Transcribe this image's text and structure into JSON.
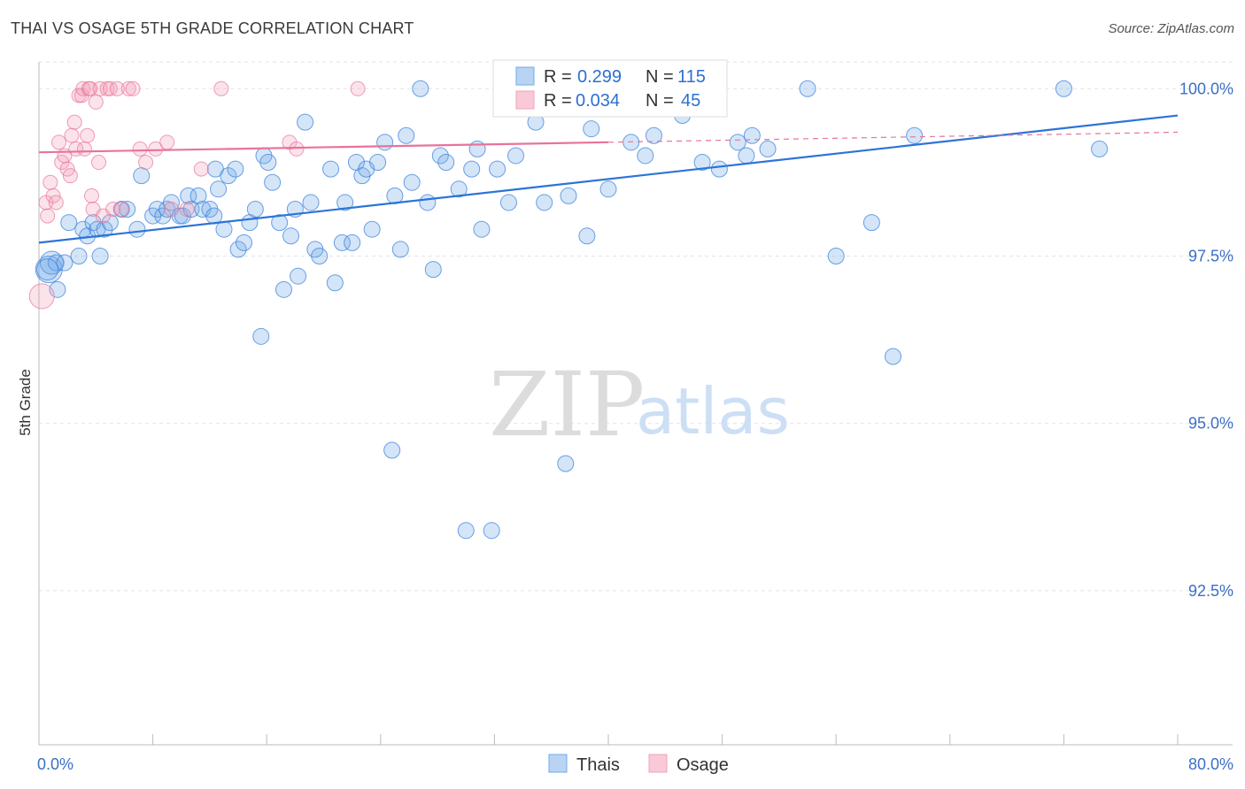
{
  "header": {
    "title": "THAI VS OSAGE 5TH GRADE CORRELATION CHART",
    "source": "Source: ZipAtlas.com"
  },
  "watermark": {
    "zip": "ZIP",
    "atlas": "atlas"
  },
  "colors": {
    "thai": "#6fa8e8",
    "thai_line": "#2d74d6",
    "osage": "#f2a3bb",
    "osage_line": "#e8739b",
    "tick_text": "#3b6fc6",
    "grid": "#e3e3e3"
  },
  "stats": [
    {
      "series": "Thais",
      "r_label": "R =",
      "r_value": "0.299",
      "n_label": "N =",
      "n_value": "115"
    },
    {
      "series": "Osage",
      "r_label": "R =",
      "r_value": "0.034",
      "n_label": "N =",
      "n_value": "45"
    }
  ],
  "chart_data": {
    "type": "scatter",
    "title": "THAI VS OSAGE 5TH GRADE CORRELATION CHART",
    "xlabel": "",
    "ylabel": "5th Grade",
    "xlim": [
      0,
      80
    ],
    "ylim": [
      90.2,
      100.4
    ],
    "x_tick_labels": [
      "0.0%",
      "80.0%"
    ],
    "y_ticks": [
      100.0,
      97.5,
      95.0,
      92.5
    ],
    "y_tick_labels": [
      "100.0%",
      "97.5%",
      "95.0%",
      "92.5%"
    ],
    "grid": true,
    "legend": "bottom-center",
    "series": [
      {
        "name": "Thais",
        "trend": {
          "x": [
            0,
            80
          ],
          "y": [
            97.7,
            99.6
          ]
        },
        "points": [
          [
            0.7,
            97.3
          ],
          [
            0.9,
            97.4
          ],
          [
            1.2,
            97.4
          ],
          [
            1.3,
            97.0
          ],
          [
            1.8,
            97.4
          ],
          [
            2.1,
            98.0
          ],
          [
            2.8,
            97.5
          ],
          [
            3.1,
            97.9
          ],
          [
            3.4,
            97.8
          ],
          [
            3.8,
            98.0
          ],
          [
            4.1,
            97.9
          ],
          [
            4.3,
            97.5
          ],
          [
            4.6,
            97.9
          ],
          [
            5.0,
            98.0
          ],
          [
            5.8,
            98.2
          ],
          [
            6.2,
            98.2
          ],
          [
            6.9,
            97.9
          ],
          [
            7.2,
            98.7
          ],
          [
            8.0,
            98.1
          ],
          [
            8.3,
            98.2
          ],
          [
            8.7,
            98.1
          ],
          [
            9.0,
            98.2
          ],
          [
            9.3,
            98.3
          ],
          [
            9.9,
            98.1
          ],
          [
            10.1,
            98.1
          ],
          [
            10.5,
            98.4
          ],
          [
            10.7,
            98.2
          ],
          [
            11.2,
            98.4
          ],
          [
            11.5,
            98.2
          ],
          [
            12.0,
            98.2
          ],
          [
            12.3,
            98.1
          ],
          [
            12.4,
            98.8
          ],
          [
            12.6,
            98.5
          ],
          [
            13.0,
            97.9
          ],
          [
            13.3,
            98.7
          ],
          [
            13.8,
            98.8
          ],
          [
            14.0,
            97.6
          ],
          [
            14.4,
            97.7
          ],
          [
            14.8,
            98.0
          ],
          [
            15.2,
            98.2
          ],
          [
            15.6,
            96.3
          ],
          [
            15.8,
            99.0
          ],
          [
            16.1,
            98.9
          ],
          [
            16.4,
            98.6
          ],
          [
            16.9,
            98.0
          ],
          [
            17.2,
            97.0
          ],
          [
            17.7,
            97.8
          ],
          [
            18.0,
            98.2
          ],
          [
            18.2,
            97.2
          ],
          [
            18.7,
            99.5
          ],
          [
            19.1,
            98.3
          ],
          [
            19.4,
            97.6
          ],
          [
            19.7,
            97.5
          ],
          [
            20.5,
            98.8
          ],
          [
            20.8,
            97.1
          ],
          [
            21.3,
            97.7
          ],
          [
            21.5,
            98.3
          ],
          [
            22.0,
            97.7
          ],
          [
            22.3,
            98.9
          ],
          [
            22.7,
            98.7
          ],
          [
            23.0,
            98.8
          ],
          [
            23.4,
            97.9
          ],
          [
            23.8,
            98.9
          ],
          [
            24.3,
            99.2
          ],
          [
            24.8,
            94.6
          ],
          [
            25.0,
            98.4
          ],
          [
            25.4,
            97.6
          ],
          [
            25.8,
            99.3
          ],
          [
            26.2,
            98.6
          ],
          [
            26.8,
            100.0
          ],
          [
            27.3,
            98.3
          ],
          [
            27.7,
            97.3
          ],
          [
            28.2,
            99.0
          ],
          [
            28.6,
            98.9
          ],
          [
            29.5,
            98.5
          ],
          [
            30.0,
            93.4
          ],
          [
            30.4,
            98.8
          ],
          [
            30.8,
            99.1
          ],
          [
            31.1,
            97.9
          ],
          [
            31.8,
            93.4
          ],
          [
            32.2,
            98.8
          ],
          [
            33.0,
            98.3
          ],
          [
            33.5,
            99.0
          ],
          [
            33.9,
            99.7
          ],
          [
            34.4,
            100.0
          ],
          [
            34.9,
            99.5
          ],
          [
            35.2,
            100.0
          ],
          [
            35.5,
            98.3
          ],
          [
            36.4,
            100.0
          ],
          [
            37.0,
            94.4
          ],
          [
            37.2,
            98.4
          ],
          [
            38.5,
            97.8
          ],
          [
            38.8,
            99.4
          ],
          [
            39.2,
            99.7
          ],
          [
            40.0,
            98.5
          ],
          [
            41.6,
            99.2
          ],
          [
            42.1,
            100.0
          ],
          [
            42.6,
            99.0
          ],
          [
            43.2,
            99.3
          ],
          [
            44.5,
            100.0
          ],
          [
            45.2,
            99.6
          ],
          [
            46.6,
            98.9
          ],
          [
            47.8,
            98.8
          ],
          [
            49.1,
            99.2
          ],
          [
            49.7,
            99.0
          ],
          [
            50.1,
            99.3
          ],
          [
            51.2,
            99.1
          ],
          [
            54.0,
            100.0
          ],
          [
            56.0,
            97.5
          ],
          [
            58.5,
            98.0
          ],
          [
            60.0,
            96.0
          ],
          [
            61.5,
            99.3
          ],
          [
            72.0,
            100.0
          ],
          [
            74.5,
            99.1
          ],
          [
            0.6,
            97.3
          ]
        ]
      },
      {
        "name": "Osage",
        "trend": {
          "x": [
            0,
            40
          ],
          "y": [
            99.05,
            99.2
          ]
        },
        "trend_extension": {
          "x": [
            40,
            80
          ],
          "y": [
            99.2,
            99.35
          ]
        },
        "points": [
          [
            0.2,
            96.9
          ],
          [
            0.5,
            98.3
          ],
          [
            0.6,
            98.1
          ],
          [
            0.8,
            98.6
          ],
          [
            1.0,
            98.4
          ],
          [
            1.2,
            98.3
          ],
          [
            1.4,
            99.2
          ],
          [
            1.6,
            98.9
          ],
          [
            1.8,
            99.0
          ],
          [
            2.0,
            98.8
          ],
          [
            2.2,
            98.7
          ],
          [
            2.3,
            99.3
          ],
          [
            2.5,
            99.5
          ],
          [
            2.6,
            99.1
          ],
          [
            2.8,
            99.9
          ],
          [
            3.0,
            99.9
          ],
          [
            3.1,
            100.0
          ],
          [
            3.2,
            99.1
          ],
          [
            3.4,
            99.3
          ],
          [
            3.5,
            100.0
          ],
          [
            3.6,
            100.0
          ],
          [
            3.7,
            98.4
          ],
          [
            3.8,
            98.2
          ],
          [
            4.0,
            99.8
          ],
          [
            4.2,
            98.9
          ],
          [
            4.3,
            100.0
          ],
          [
            4.5,
            98.1
          ],
          [
            4.8,
            100.0
          ],
          [
            5.0,
            100.0
          ],
          [
            5.2,
            98.2
          ],
          [
            5.5,
            100.0
          ],
          [
            5.8,
            98.2
          ],
          [
            6.3,
            100.0
          ],
          [
            6.6,
            100.0
          ],
          [
            7.1,
            99.1
          ],
          [
            7.5,
            98.9
          ],
          [
            8.2,
            99.1
          ],
          [
            9.0,
            99.2
          ],
          [
            9.3,
            98.2
          ],
          [
            10.4,
            98.2
          ],
          [
            11.4,
            98.8
          ],
          [
            12.8,
            100.0
          ],
          [
            17.6,
            99.2
          ],
          [
            18.1,
            99.1
          ],
          [
            22.4,
            100.0
          ]
        ]
      }
    ]
  }
}
